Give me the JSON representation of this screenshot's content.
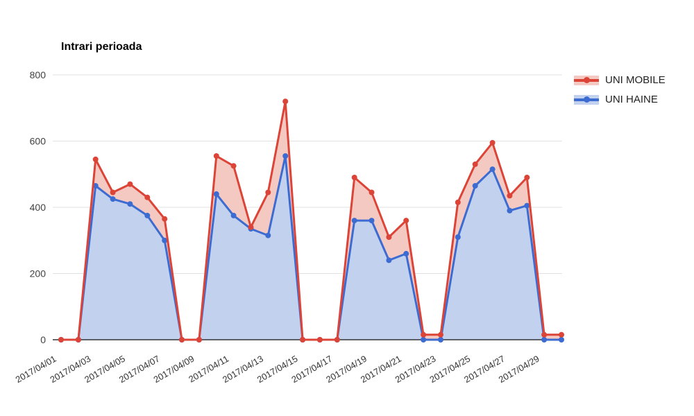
{
  "title": "Intrari perioada",
  "chart_data": {
    "type": "area",
    "title": "Intrari perioada",
    "xlabel": "",
    "ylabel": "",
    "ylim": [
      0,
      800
    ],
    "yticks": [
      0,
      200,
      400,
      600,
      800
    ],
    "grid": true,
    "legend_position": "right",
    "x_tick_every": 2,
    "x": [
      "2017/04/01",
      "2017/04/02",
      "2017/04/03",
      "2017/04/04",
      "2017/04/05",
      "2017/04/06",
      "2017/04/07",
      "2017/04/08",
      "2017/04/09",
      "2017/04/10",
      "2017/04/11",
      "2017/04/12",
      "2017/04/13",
      "2017/04/14",
      "2017/04/15",
      "2017/04/16",
      "2017/04/17",
      "2017/04/18",
      "2017/04/19",
      "2017/04/20",
      "2017/04/21",
      "2017/04/22",
      "2017/04/23",
      "2017/04/24",
      "2017/04/25",
      "2017/04/26",
      "2017/04/27",
      "2017/04/28",
      "2017/04/29",
      "2017/04/30"
    ],
    "series": [
      {
        "name": "UNI MOBILE",
        "color": "#DB4437",
        "fill": "#F4C9C2",
        "values": [
          0,
          0,
          545,
          445,
          470,
          430,
          365,
          0,
          0,
          555,
          525,
          340,
          445,
          720,
          0,
          0,
          0,
          490,
          445,
          310,
          360,
          15,
          15,
          415,
          530,
          595,
          435,
          490,
          15,
          15
        ]
      },
      {
        "name": "UNI HAINE",
        "color": "#3C6BD2",
        "fill": "#C2D1EE",
        "values": [
          0,
          0,
          465,
          425,
          410,
          375,
          300,
          0,
          0,
          440,
          375,
          335,
          315,
          555,
          0,
          0,
          0,
          360,
          360,
          240,
          260,
          0,
          0,
          310,
          465,
          515,
          390,
          405,
          0,
          0
        ]
      }
    ]
  }
}
